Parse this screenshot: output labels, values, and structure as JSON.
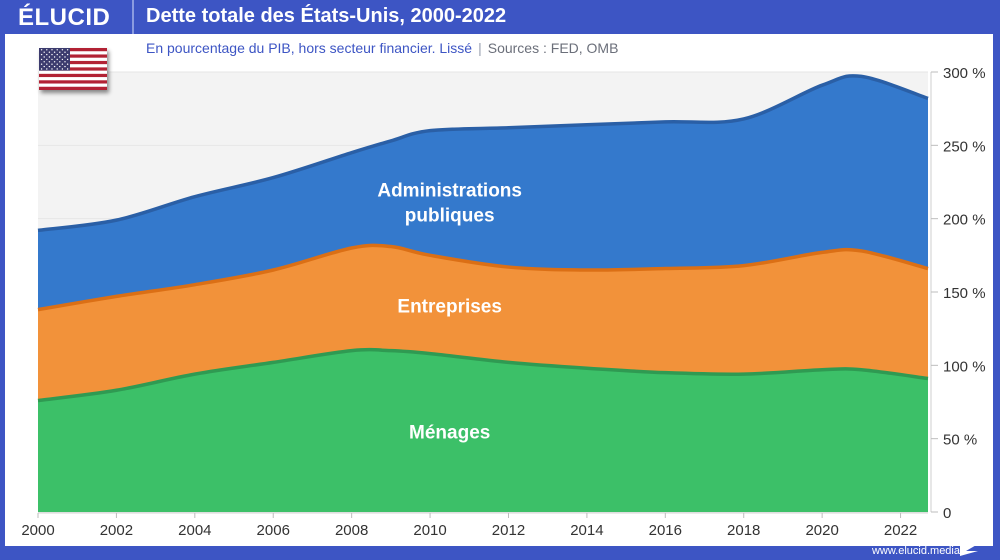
{
  "header": {
    "logo": "ÉLUCID",
    "title": "Dette totale des États-Unis, 2000-2022"
  },
  "subtitle": {
    "text": "En pourcentage du PIB, hors secteur financier. Lissé",
    "separator": "|",
    "sources": "Sources : FED, OMB"
  },
  "flag": {
    "icon": "us-flag-icon"
  },
  "footer": {
    "url": "www.elucid.media"
  },
  "colors": {
    "background": "#3d55c4",
    "government": "#3479cc",
    "government_line": "#2a5fa6",
    "business": "#f2923a",
    "business_line": "#db6f15",
    "households": "#3cc068",
    "households_line": "#2f9a52",
    "plot_bg": "#f3f3f3"
  },
  "chart_data": {
    "type": "area",
    "stacked": true,
    "title": "Dette totale des États-Unis, 2000-2022",
    "subtitle": "En pourcentage du PIB, hors secteur financier. Lissé",
    "xlabel": "",
    "ylabel": "",
    "x": [
      2000,
      2002,
      2004,
      2006,
      2008,
      2009,
      2010,
      2012,
      2014,
      2016,
      2018,
      2020,
      2021,
      2022.7
    ],
    "series": [
      {
        "name": "Ménages",
        "key": "households",
        "values": [
          76,
          83,
          94,
          102,
          110,
          110,
          108,
          102,
          98,
          95,
          94,
          97,
          97,
          91
        ]
      },
      {
        "name": "Entreprises",
        "key": "business",
        "values": [
          62,
          64,
          61,
          63,
          70,
          71,
          67,
          65,
          67,
          71,
          74,
          80,
          81,
          75
        ]
      },
      {
        "name": "Administrations publiques",
        "key": "government",
        "values": [
          54,
          52,
          60,
          63,
          65,
          72,
          85,
          95,
          99,
          100,
          100,
          114,
          119,
          116
        ]
      }
    ],
    "series_labels": [
      {
        "key": "households",
        "lines": [
          "Ménages"
        ],
        "x": 2010.5,
        "y": 50
      },
      {
        "key": "business",
        "lines": [
          "Entreprises"
        ],
        "x": 2010.5,
        "y": 136
      },
      {
        "key": "government",
        "lines": [
          "Administrations",
          "publiques"
        ],
        "x": 2010.5,
        "y": 215
      }
    ],
    "xlim": [
      2000,
      2022.7
    ],
    "ylim": [
      0,
      300
    ],
    "x_ticks": [
      2000,
      2002,
      2004,
      2006,
      2008,
      2010,
      2012,
      2014,
      2016,
      2018,
      2020,
      2022
    ],
    "x_tick_labels": [
      "2000",
      "2002",
      "2004",
      "2006",
      "2008",
      "2010",
      "2012",
      "2014",
      "2016",
      "2018",
      "2020",
      "2022"
    ],
    "y_ticks": [
      0,
      50,
      100,
      150,
      200,
      250,
      300
    ],
    "y_tick_labels": [
      "0",
      "50 %",
      "100 %",
      "150 %",
      "200 %",
      "250 %",
      "300 %"
    ],
    "y_axis_side": "right",
    "grid": true,
    "legend": "inline-labels"
  }
}
